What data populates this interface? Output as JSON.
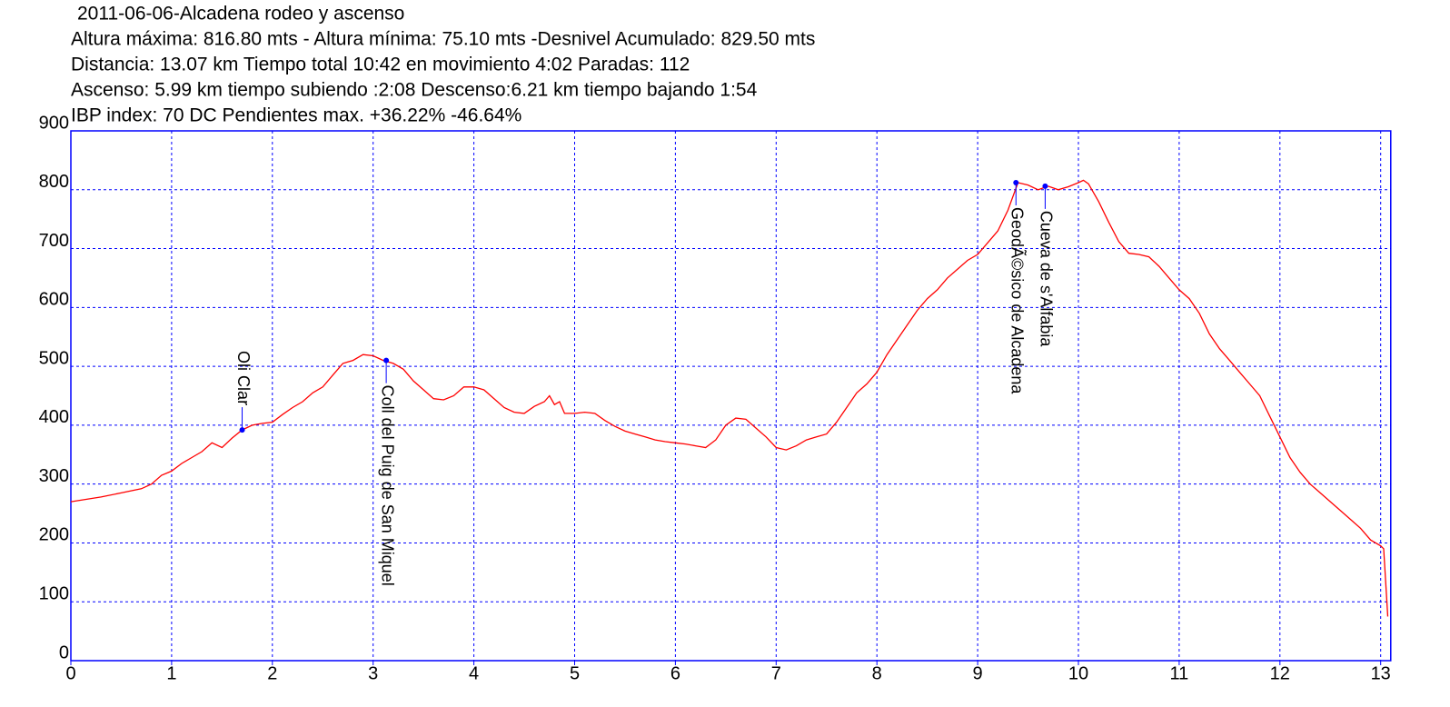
{
  "chart_data": {
    "type": "line",
    "title_lines": [
      "2011-06-06-Alcadena rodeo y ascenso",
      "Altura máxima: 816.80 mts - Altura mínima: 75.10 mts -Desnivel Acumulado: 829.50 mts",
      "Distancia: 13.07 km  Tiempo total 10:42  en movimiento 4:02 Paradas: 112",
      "Ascenso: 5.99 km  tiempo subiendo :2:08  Descenso:6.21 km tiempo bajando 1:54",
      " IBP index: 70 DC  Pendientes max. +36.22%  -46.64%"
    ],
    "x": [
      0,
      0.3,
      0.5,
      0.7,
      0.8,
      0.9,
      1.0,
      1.1,
      1.2,
      1.3,
      1.4,
      1.5,
      1.6,
      1.7,
      1.8,
      1.9,
      2.0,
      2.1,
      2.2,
      2.3,
      2.4,
      2.5,
      2.6,
      2.7,
      2.8,
      2.9,
      3.0,
      3.1,
      3.2,
      3.3,
      3.4,
      3.5,
      3.6,
      3.7,
      3.8,
      3.9,
      4.0,
      4.1,
      4.2,
      4.3,
      4.4,
      4.5,
      4.6,
      4.7,
      4.75,
      4.8,
      4.85,
      4.9,
      5.0,
      5.1,
      5.2,
      5.3,
      5.4,
      5.5,
      5.6,
      5.7,
      5.8,
      5.9,
      6.0,
      6.1,
      6.2,
      6.3,
      6.4,
      6.5,
      6.6,
      6.7,
      6.8,
      6.9,
      7.0,
      7.1,
      7.2,
      7.3,
      7.4,
      7.5,
      7.6,
      7.7,
      7.8,
      7.9,
      8.0,
      8.1,
      8.2,
      8.3,
      8.4,
      8.5,
      8.6,
      8.7,
      8.8,
      8.9,
      9.0,
      9.1,
      9.2,
      9.3,
      9.4,
      9.5,
      9.6,
      9.7,
      9.8,
      9.9,
      10.0,
      10.05,
      10.1,
      10.2,
      10.3,
      10.4,
      10.5,
      10.6,
      10.7,
      10.8,
      10.9,
      11.0,
      11.1,
      11.2,
      11.3,
      11.4,
      11.5,
      11.6,
      11.7,
      11.8,
      11.9,
      12.0,
      12.1,
      12.2,
      12.3,
      12.4,
      12.5,
      12.6,
      12.7,
      12.8,
      12.9,
      13.0,
      13.03,
      13.07
    ],
    "series": [
      {
        "color": "#ff0000",
        "values": [
          270,
          278,
          285,
          292,
          300,
          315,
          322,
          335,
          345,
          355,
          370,
          362,
          378,
          392,
          400,
          403,
          405,
          418,
          430,
          440,
          455,
          465,
          485,
          505,
          510,
          520,
          518,
          510,
          505,
          495,
          475,
          460,
          445,
          443,
          450,
          465,
          465,
          460,
          445,
          430,
          422,
          420,
          432,
          440,
          450,
          435,
          440,
          420,
          420,
          422,
          420,
          408,
          398,
          390,
          385,
          380,
          375,
          372,
          370,
          368,
          365,
          362,
          375,
          400,
          412,
          410,
          395,
          380,
          362,
          358,
          365,
          375,
          380,
          385,
          405,
          430,
          455,
          470,
          490,
          520,
          545,
          570,
          595,
          615,
          630,
          650,
          665,
          680,
          690,
          710,
          730,
          765,
          812,
          808,
          800,
          806,
          800,
          805,
          812,
          816,
          810,
          780,
          745,
          712,
          692,
          690,
          686,
          670,
          650,
          630,
          615,
          590,
          555,
          530,
          510,
          490,
          470,
          450,
          415,
          380,
          345,
          320,
          300,
          285,
          270,
          255,
          240,
          225,
          205,
          195,
          190,
          75
        ]
      }
    ],
    "annotations": [
      {
        "label": "Oli Clar",
        "x": 1.7,
        "y": 392,
        "placement": "above"
      },
      {
        "label": "Coll del Puig de San Miquel",
        "x": 3.13,
        "y": 510,
        "placement": "below"
      },
      {
        "label": "GeodÃ©sico de Alcadena",
        "x": 9.38,
        "y": 812,
        "placement": "below"
      },
      {
        "label": "Cueva de s'Alfabia",
        "x": 9.67,
        "y": 806,
        "placement": "below"
      }
    ],
    "marker_color": "#0000ff",
    "axis_color": "#0000ff",
    "xlim": [
      0,
      13.1
    ],
    "ylim": [
      0,
      900
    ],
    "xticks": [
      0,
      1,
      2,
      3,
      4,
      5,
      6,
      7,
      8,
      9,
      10,
      11,
      12,
      13
    ],
    "yticks": [
      0,
      100,
      200,
      300,
      400,
      500,
      600,
      700,
      800,
      900
    ],
    "grid": true
  }
}
